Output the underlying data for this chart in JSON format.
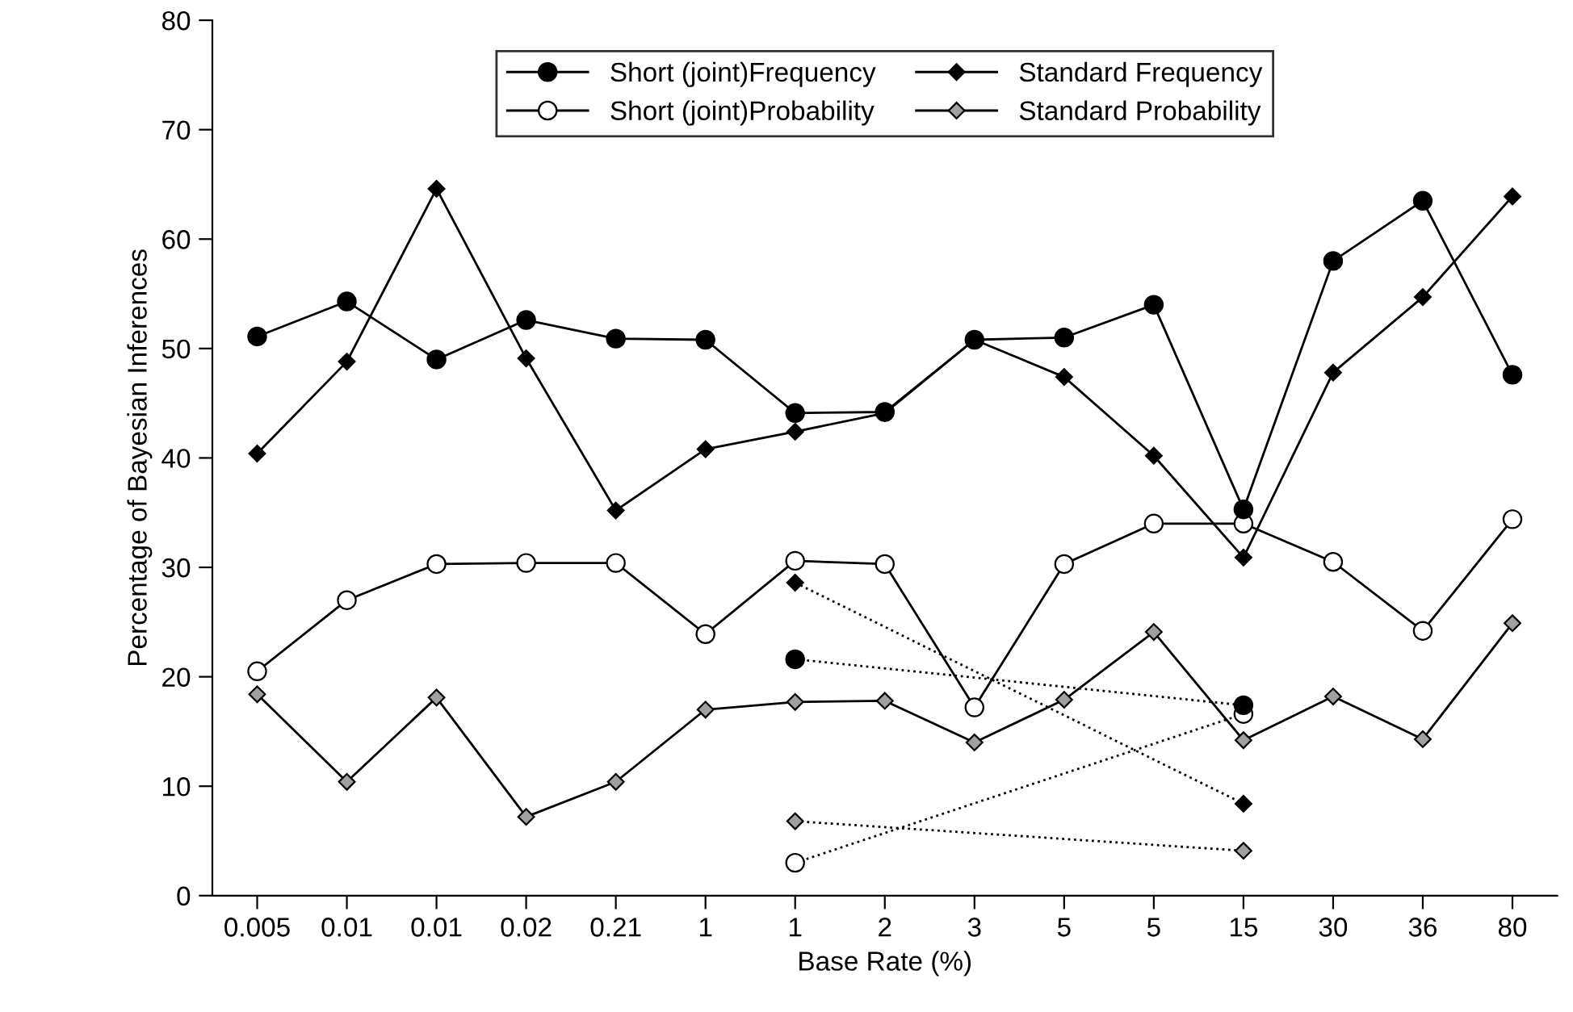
{
  "chart_data": {
    "type": "line",
    "xlabel": "Base Rate (%)",
    "ylabel": "Percentage of Bayesian Inferences",
    "categories": [
      "0.005",
      "0.01",
      "0.01",
      "0.02",
      "0.21",
      "1",
      "1",
      "2",
      "3",
      "5",
      "5",
      "15",
      "30",
      "36",
      "80"
    ],
    "ylim": [
      0,
      80
    ],
    "yticks": [
      0,
      10,
      20,
      30,
      40,
      50,
      60,
      70,
      80
    ],
    "grid": false,
    "legend": "top",
    "series": [
      {
        "name": "Short (joint)Frequency",
        "color": "#000000",
        "marker": "circle",
        "line_style": "solid",
        "values": [
          51.1,
          54.3,
          49.0,
          52.6,
          50.9,
          50.8,
          44.1,
          44.2,
          50.8,
          51.0,
          54.0,
          35.3,
          58.0,
          63.5,
          47.6
        ]
      },
      {
        "name": "Short (joint)Probability",
        "color": "#ffffff",
        "marker": "circle",
        "line_style": "solid",
        "values": [
          20.5,
          27.0,
          30.3,
          30.4,
          30.4,
          23.9,
          30.6,
          30.3,
          17.2,
          30.3,
          34.0,
          34.0,
          30.5,
          24.2,
          34.4
        ]
      },
      {
        "name": "Standard Frequency",
        "color": "#000000",
        "marker": "diamond",
        "line_style": "solid",
        "values": [
          40.4,
          48.8,
          64.6,
          49.1,
          35.2,
          40.8,
          42.4,
          44.1,
          50.8,
          47.4,
          40.2,
          30.9,
          47.8,
          54.7,
          63.9
        ]
      },
      {
        "name": "Standard Probability",
        "color": "#a0a0a0",
        "marker": "diamond",
        "line_style": "solid",
        "values": [
          18.4,
          10.4,
          18.1,
          7.2,
          10.4,
          17.0,
          17.7,
          17.8,
          14.0,
          17.9,
          24.1,
          14.2,
          18.2,
          14.3,
          24.9
        ]
      },
      {
        "color": "#000000",
        "marker": "diamond",
        "line_style": "dotted",
        "values": [
          null,
          null,
          null,
          null,
          null,
          null,
          28.6,
          null,
          null,
          null,
          null,
          8.4,
          null,
          null,
          null
        ]
      },
      {
        "color": "#000000",
        "marker": "circle",
        "line_style": "dotted",
        "values": [
          null,
          null,
          null,
          null,
          null,
          null,
          21.6,
          null,
          null,
          null,
          null,
          17.4,
          null,
          null,
          null
        ]
      },
      {
        "color": "#a0a0a0",
        "marker": "diamond",
        "line_style": "dotted",
        "values": [
          null,
          null,
          null,
          null,
          null,
          null,
          6.8,
          null,
          null,
          null,
          null,
          4.1,
          null,
          null,
          null
        ]
      },
      {
        "color": "#ffffff",
        "marker": "circle",
        "line_style": "dotted",
        "values": [
          null,
          null,
          null,
          null,
          null,
          null,
          3.0,
          null,
          null,
          null,
          null,
          16.6,
          null,
          null,
          null
        ]
      }
    ]
  }
}
